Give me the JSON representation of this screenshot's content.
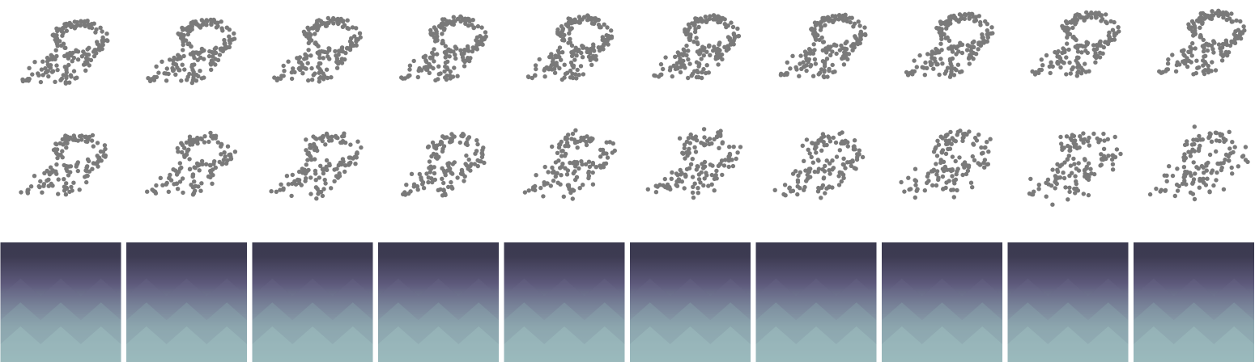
{
  "figure": {
    "columns": 10,
    "rows": [
      "point-cloud-row",
      "noisy-cloud-row",
      "texture-row"
    ],
    "colors": {
      "dot": "#7a7a7a",
      "texture_top": "#3b3a4f",
      "texture_mid": "#5e5a7c",
      "texture_bottom": "#a5c8c8"
    }
  }
}
